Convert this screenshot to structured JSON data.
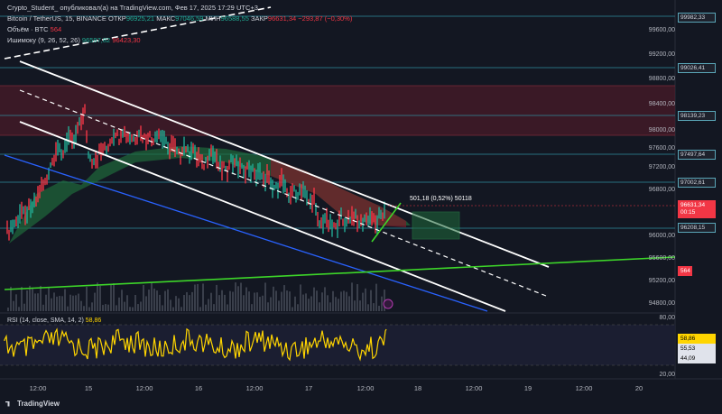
{
  "header": {
    "title": "Crypto_Student_ опубликовал(а) на TradingView.com, Фев 17, 2025 17:29 UTC+3",
    "symbol": "Bitcoin / TetherUS, 15, BINANCE",
    "open_label": "ОТКР",
    "open": "96925,21",
    "high_label": "МАКС",
    "high": "97046,59",
    "low_label": "МИН",
    "low": "96588,55",
    "close_label": "ЗАКР",
    "close": "96631,34",
    "change": "−293,87 (−0,30%)",
    "volume_label": "Объём · BTC",
    "volume": "564",
    "ichimoku_label": "Ишимоку (9, 26, 52, 26)",
    "ichimoku_a": "96597,82",
    "ichimoku_b": "96423,30"
  },
  "price_axis": [
    "99600,00",
    "99200,00",
    "98800,00",
    "98400,00",
    "98000,00",
    "97600,00",
    "97200,00",
    "96800,00",
    "96000,00",
    "95600,00",
    "95200,00",
    "94800,00"
  ],
  "price_tags": {
    "t1": "99982,33",
    "t2": "99026,41",
    "t3": "98139,23",
    "t4": "97497,64",
    "t5": "97002,61",
    "current": "96631,34",
    "countdown": "00:15",
    "t6": "96208,15",
    "volume": "564"
  },
  "measure_label": "501,18 (0,52%) 50118",
  "rsi": {
    "label": "RSI (14, close, SMA, 14, 2)",
    "value": "58,86",
    "axis": [
      "80,00",
      "20,00"
    ],
    "tags": {
      "a": "58,86",
      "b": "55,53",
      "c": "44,09"
    }
  },
  "time_axis": [
    "12:00",
    "15",
    "12:00",
    "16",
    "12:00",
    "17",
    "12:00",
    "18",
    "12:00",
    "19",
    "12:00",
    "20"
  ],
  "brand": "TradingView",
  "colors": {
    "bg": "#131722",
    "up": "#22ab94",
    "down": "#f23645",
    "channel": "#ffffff",
    "trend": "#2962ff",
    "green_line": "#3dd629",
    "rsi": "#ffd500"
  }
}
